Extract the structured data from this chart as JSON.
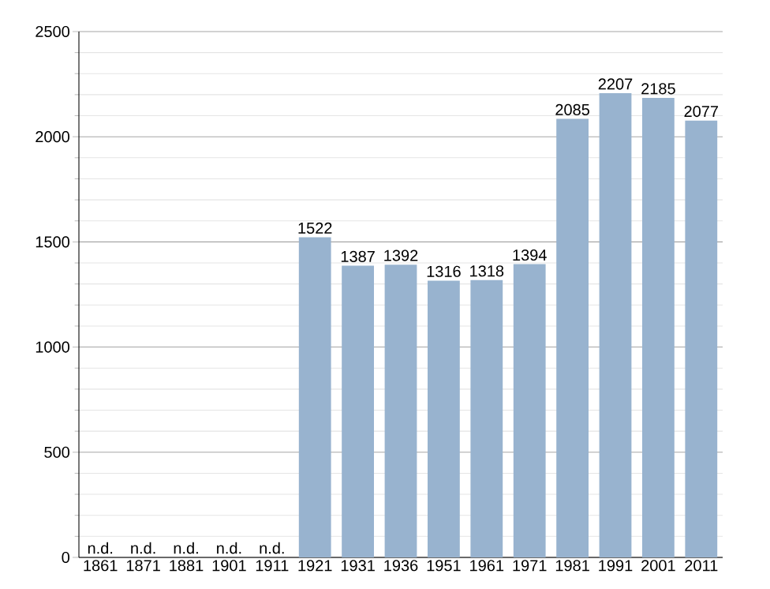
{
  "chart_data": {
    "type": "bar",
    "categories": [
      "1861",
      "1871",
      "1881",
      "1901",
      "1911",
      "1921",
      "1931",
      "1936",
      "1951",
      "1961",
      "1971",
      "1981",
      "1991",
      "2001",
      "2011"
    ],
    "values": [
      null,
      null,
      null,
      null,
      null,
      1522,
      1387,
      1392,
      1316,
      1318,
      1394,
      2085,
      2207,
      2185,
      2077
    ],
    "value_labels": [
      "n.d.",
      "n.d.",
      "n.d.",
      "n.d.",
      "n.d.",
      "1522",
      "1387",
      "1392",
      "1316",
      "1318",
      "1394",
      "2085",
      "2207",
      "2185",
      "2077"
    ],
    "color": "#98b3cf",
    "ylim": [
      0,
      2500
    ],
    "yticks": [
      0,
      500,
      1000,
      1500,
      2000,
      2500
    ],
    "grid": "y"
  }
}
